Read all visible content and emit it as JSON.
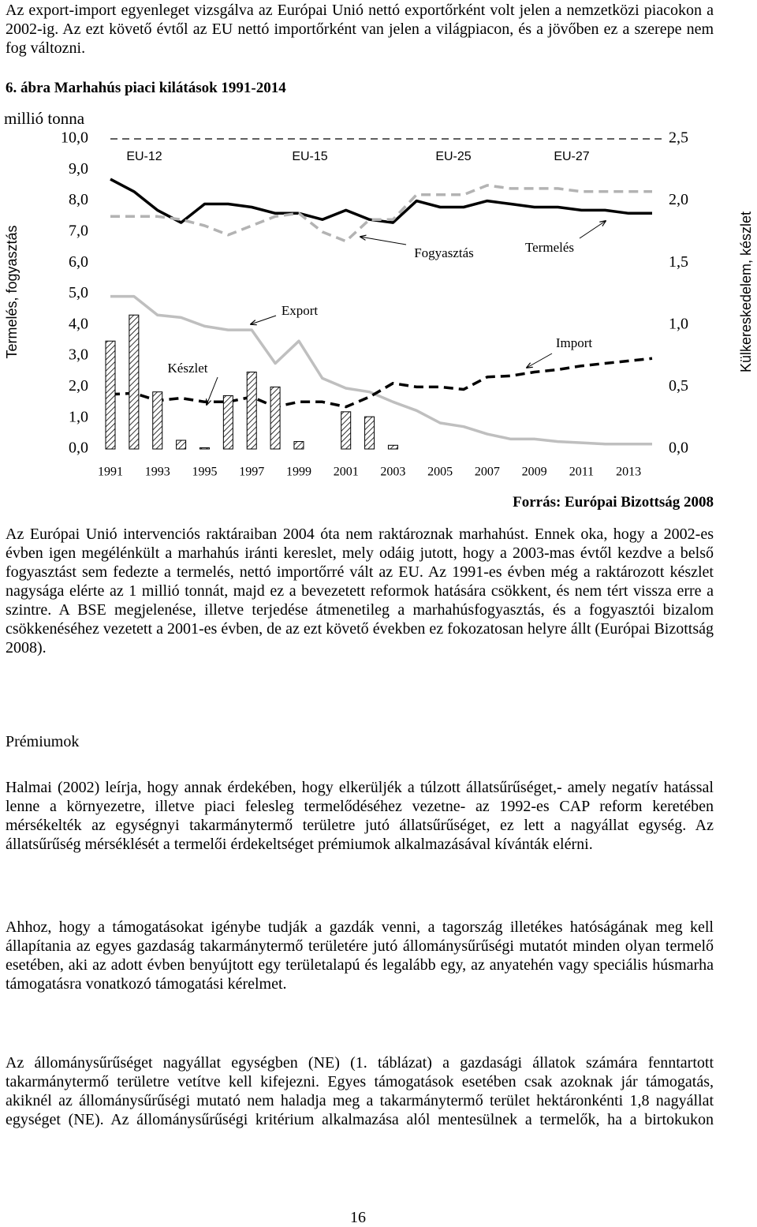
{
  "intro": "Az export-import egyenleget vizsgálva az Európai Unió nettó exportőrként volt jelen a nemzetközi piacokon a 2002-ig. Az ezt követő évtől az EU nettó importőrként van jelen a világpiacon, és a jövőben ez a szerepe nem fog változni.",
  "figure": {
    "caption": "6. ábra Marhahús piaci kilátások 1991-2014",
    "source": "Forrás: Európai Bizottság 2008"
  },
  "chart_data": {
    "type": "line",
    "unit_label": "millió tonna",
    "ylabel": "Termelés, fogyasztás",
    "y2label": "Külkereskedelem, készlet",
    "x": [
      1991,
      1992,
      1993,
      1994,
      1995,
      1996,
      1997,
      1998,
      1999,
      2000,
      2001,
      2002,
      2003,
      2004,
      2005,
      2006,
      2007,
      2008,
      2009,
      2010,
      2011,
      2012,
      2013,
      2014
    ],
    "xlim": [
      1991,
      2014
    ],
    "xticks": [
      1991,
      1993,
      1995,
      1997,
      1999,
      2001,
      2003,
      2005,
      2007,
      2009,
      2011,
      2013
    ],
    "ylim": [
      0,
      10
    ],
    "yticks": [
      {
        "value": 0,
        "label": "0,0"
      },
      {
        "value": 1,
        "label": "1,0"
      },
      {
        "value": 2,
        "label": "2,0"
      },
      {
        "value": 3,
        "label": "3,0"
      },
      {
        "value": 4,
        "label": "4,0"
      },
      {
        "value": 5,
        "label": "5,0"
      },
      {
        "value": 6,
        "label": "6,0"
      },
      {
        "value": 7,
        "label": "7,0"
      },
      {
        "value": 8,
        "label": "8,0"
      },
      {
        "value": 9,
        "label": "9,0"
      },
      {
        "value": 10,
        "label": "10,0"
      }
    ],
    "y2lim": [
      0,
      2.5
    ],
    "y2ticks": [
      {
        "value": 0,
        "label": "0,0"
      },
      {
        "value": 0.5,
        "label": "0,5"
      },
      {
        "value": 1,
        "label": "1,0"
      },
      {
        "value": 1.5,
        "label": "1,5"
      },
      {
        "value": 2,
        "label": "2,0"
      },
      {
        "value": 2.5,
        "label": "2,5"
      }
    ],
    "grid": false,
    "regions": [
      "EU-12",
      "EU-15",
      "EU-25",
      "EU-27"
    ],
    "series": [
      {
        "name": "Termelés",
        "color": "#000000",
        "dashed": false,
        "axis": "y",
        "values": [
          8.7,
          8.3,
          7.7,
          7.3,
          7.9,
          7.9,
          7.8,
          7.6,
          7.6,
          7.4,
          7.7,
          7.4,
          7.3,
          8.0,
          7.8,
          7.8,
          8.0,
          7.9,
          7.8,
          7.8,
          7.7,
          7.7,
          7.6,
          7.6
        ]
      },
      {
        "name": "Fogyasztás",
        "color": "#b3b3b3",
        "dashed": true,
        "axis": "y",
        "values": [
          7.5,
          7.5,
          7.5,
          7.4,
          7.2,
          6.9,
          7.2,
          7.5,
          7.6,
          7.0,
          6.7,
          7.4,
          7.4,
          8.2,
          8.2,
          8.2,
          8.5,
          8.4,
          8.4,
          8.4,
          8.3,
          8.3,
          8.3,
          8.3
        ]
      },
      {
        "name": "Export",
        "color": "#bfbfbf",
        "dashed": false,
        "axis": "y2",
        "values": [
          1.23,
          1.23,
          1.08,
          1.06,
          0.99,
          0.96,
          0.96,
          0.69,
          0.87,
          0.57,
          0.49,
          0.46,
          0.38,
          0.31,
          0.21,
          0.18,
          0.12,
          0.08,
          0.08,
          0.06,
          0.05,
          0.04,
          0.04,
          0.04
        ]
      },
      {
        "name": "Import",
        "color": "#000000",
        "dashed": true,
        "axis": "y2",
        "values": [
          0.44,
          0.45,
          0.39,
          0.41,
          0.38,
          0.38,
          0.42,
          0.34,
          0.38,
          0.38,
          0.34,
          0.42,
          0.53,
          0.5,
          0.5,
          0.48,
          0.58,
          0.59,
          0.62,
          0.64,
          0.67,
          0.69,
          0.71,
          0.73
        ]
      },
      {
        "name": "Készlet",
        "kind": "bar",
        "color": "#000000",
        "axis": "y2",
        "values": [
          0.87,
          1.08,
          0.46,
          0.07,
          0.01,
          0.43,
          0.62,
          0.5,
          0.06,
          null,
          0.3,
          0.26,
          0.03,
          null,
          null,
          null,
          null,
          null,
          null,
          null,
          null,
          null,
          null,
          null
        ]
      }
    ]
  },
  "body": {
    "paragraph_1": "Az Európai Unió intervenciós raktáraiban 2004 óta nem raktároznak marhahúst. Ennek oka, hogy a 2002-es évben igen megélénkült a marhahús iránti kereslet, mely odáig jutott, hogy a 2003-mas évtől kezdve a belső fogyasztást sem fedezte a termelés, nettó importőrré vált az EU. Az 1991-es évben még a raktározott készlet nagysága elérte az 1 millió tonnát, majd ez a bevezetett reformok hatására csökkent, és nem tért vissza erre a szintre. A BSE megjelenése, illetve terjedése átmenetileg a marhahúsfogyasztás, és a fogyasztói bizalom csökkenéséhez vezetett a 2001-es évben, de az ezt követő években ez fokozatosan helyre állt (Európai Bizottság 2008).",
    "heading": "Prémiumok",
    "paragraph_2": "Halmai (2002) leírja, hogy annak érdekében, hogy elkerüljék a túlzott állatsűrűséget,- amely negatív hatással lenne a környezetre, illetve piaci felesleg termelődéséhez vezetne- az 1992-es CAP reform keretében mérsékelték az egységnyi takarmánytermő területre jutó állatsűrűséget, ez lett a nagyállat egység. Az állatsűrűség mérséklését a termelői érdekeltséget prémiumok alkalmazásával kívánták elérni.",
    "paragraph_3": "Ahhoz, hogy a támogatásokat igénybe tudják a gazdák venni, a tagország illetékes hatóságának meg kell állapítania az egyes gazdaság takarmánytermő területére jutó állománysűrűségi mutatót minden olyan termelő esetében, aki az adott évben benyújtott egy területalapú és legalább egy, az anyatehén vagy speciális húsmarha támogatásra vonatkozó támogatási kérelmet.",
    "paragraph_4": "Az állománysűrűséget nagyállat egységben (NE) (1. táblázat) a gazdasági állatok számára fenntartott takarmánytermő területre vetítve kell kifejezni. Egyes támogatások esetében csak azoknak jár támogatás, akiknél az állománysűrűségi mutató nem haladja meg a takarmánytermő terület hektáronkénti 1,8 nagyállat egységet (NE). Az állománysűrűségi kritérium alkalmazása alól mentesülnek a termelők, ha a birtokukon"
  },
  "page_number": "16"
}
